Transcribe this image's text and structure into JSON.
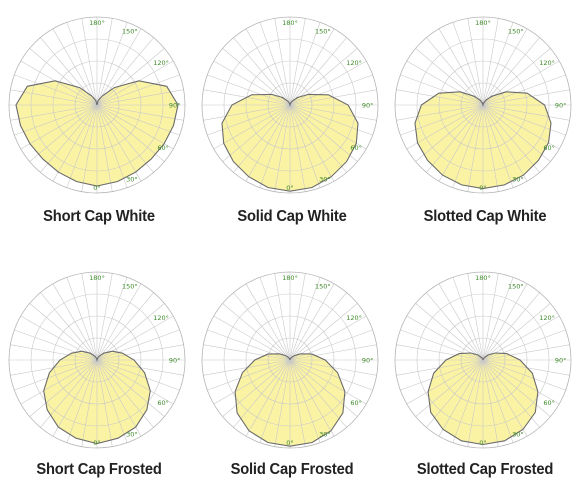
{
  "colors": {
    "fill": "#fbf3a4",
    "outline": "#6b6b6b",
    "grid": "#c9c9c9",
    "tick_text": "#3e8a2a",
    "caption": "#222222"
  },
  "chart_data": [
    {
      "type": "polar-area",
      "title": "Short Cap White",
      "angle_ticks": [
        "0°",
        "30°",
        "60°",
        "90°",
        "120°",
        "150°",
        "180°"
      ],
      "angles_deg": [
        0,
        15,
        30,
        45,
        60,
        75,
        90,
        105,
        120,
        135,
        150,
        165,
        180
      ],
      "values": [
        0.92,
        0.9,
        0.88,
        0.87,
        0.88,
        0.9,
        0.92,
        0.82,
        0.55,
        0.28,
        0.12,
        0.05,
        0.0
      ]
    },
    {
      "type": "polar-area",
      "title": "Solid Cap White",
      "angle_ticks": [
        "0°",
        "30°",
        "60°",
        "90°",
        "120°",
        "150°",
        "180°"
      ],
      "angles_deg": [
        0,
        15,
        30,
        45,
        60,
        75,
        90,
        105,
        120,
        135,
        150,
        165,
        180
      ],
      "values": [
        0.98,
        0.97,
        0.94,
        0.91,
        0.87,
        0.8,
        0.66,
        0.45,
        0.24,
        0.12,
        0.05,
        0.02,
        0.0
      ]
    },
    {
      "type": "polar-area",
      "title": "Slotted Cap White",
      "angle_ticks": [
        "0°",
        "30°",
        "60°",
        "90°",
        "120°",
        "150°",
        "180°"
      ],
      "angles_deg": [
        0,
        15,
        30,
        45,
        60,
        75,
        90,
        105,
        120,
        135,
        150,
        165,
        180
      ],
      "values": [
        0.95,
        0.94,
        0.92,
        0.89,
        0.86,
        0.8,
        0.7,
        0.52,
        0.3,
        0.14,
        0.06,
        0.02,
        0.0
      ]
    },
    {
      "type": "polar-area",
      "title": "Short Cap Frosted",
      "angle_ticks": [
        "0°",
        "30°",
        "60°",
        "90°",
        "120°",
        "150°",
        "180°"
      ],
      "angles_deg": [
        0,
        15,
        30,
        45,
        60,
        75,
        90,
        105,
        120,
        135,
        150,
        165,
        180
      ],
      "values": [
        0.95,
        0.92,
        0.88,
        0.8,
        0.7,
        0.56,
        0.42,
        0.3,
        0.2,
        0.11,
        0.05,
        0.02,
        0.0
      ]
    },
    {
      "type": "polar-area",
      "title": "Solid Cap Frosted",
      "angle_ticks": [
        "0°",
        "30°",
        "60°",
        "90°",
        "120°",
        "150°",
        "180°"
      ],
      "angles_deg": [
        0,
        15,
        30,
        45,
        60,
        75,
        90,
        105,
        120,
        135,
        150,
        165,
        180
      ],
      "values": [
        0.98,
        0.97,
        0.93,
        0.85,
        0.72,
        0.56,
        0.4,
        0.26,
        0.14,
        0.07,
        0.03,
        0.01,
        0.0
      ]
    },
    {
      "type": "polar-area",
      "title": "Slotted Cap Frosted",
      "angle_ticks": [
        "0°",
        "30°",
        "60°",
        "90°",
        "120°",
        "150°",
        "180°"
      ],
      "angles_deg": [
        0,
        15,
        30,
        45,
        60,
        75,
        90,
        105,
        120,
        135,
        150,
        165,
        180
      ],
      "values": [
        0.96,
        0.95,
        0.91,
        0.84,
        0.72,
        0.58,
        0.42,
        0.28,
        0.16,
        0.08,
        0.03,
        0.01,
        0.0
      ]
    }
  ]
}
